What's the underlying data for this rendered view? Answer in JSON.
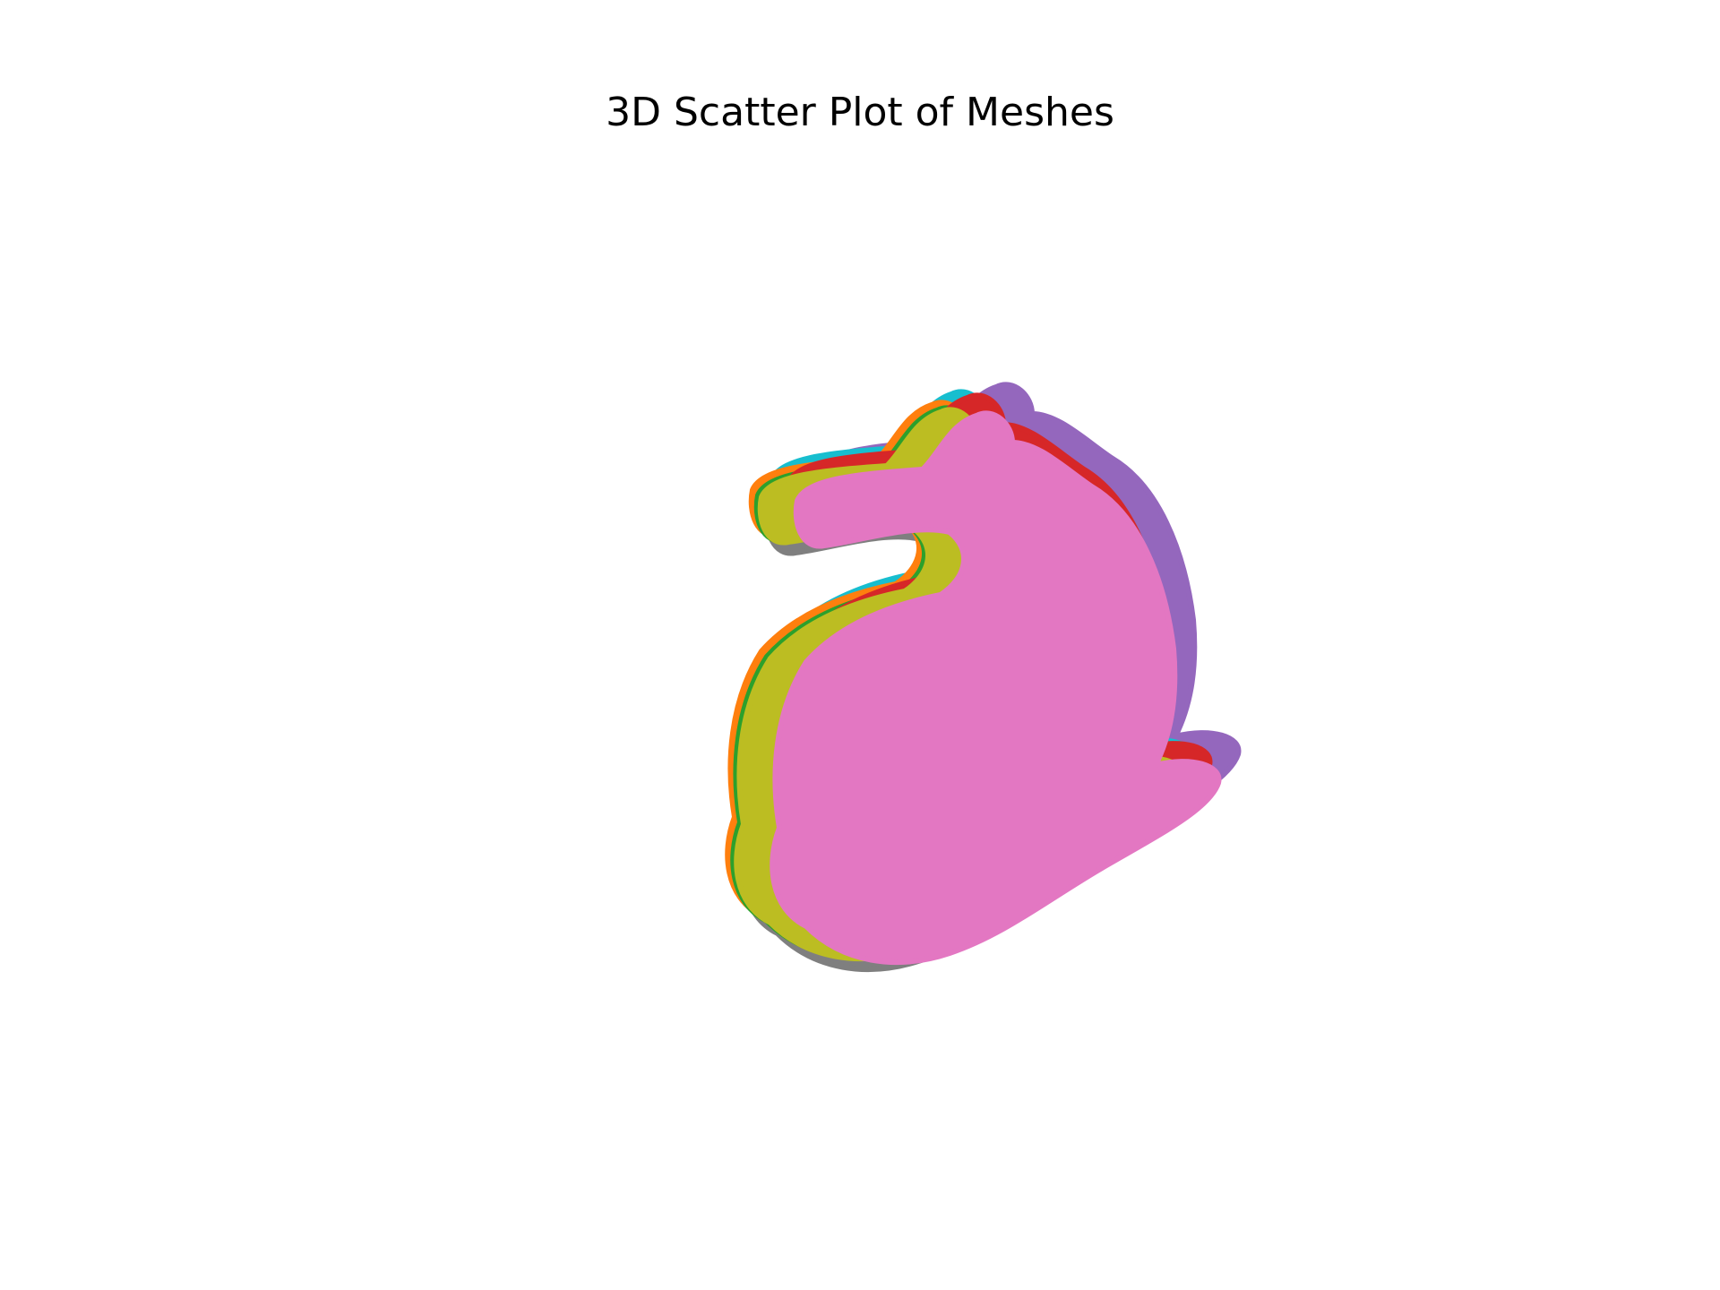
{
  "chart_data": {
    "type": "scatter",
    "title": "3D Scatter Plot of Meshes",
    "xlabel": "",
    "ylabel": "",
    "zlabel": "",
    "axes_visible": false,
    "grid": false,
    "legend": "none",
    "series": [
      {
        "color": "#7f7f7f",
        "offset": [
          8,
          12
        ]
      },
      {
        "color": "#8c564b",
        "offset": [
          28,
          -14
        ]
      },
      {
        "color": "#9467bd",
        "offset": [
          62,
          -28
        ]
      },
      {
        "color": "#17becf",
        "offset": [
          12,
          -20
        ]
      },
      {
        "color": "#ff7f0e",
        "offset": [
          -10,
          -8
        ]
      },
      {
        "color": "#2ca02c",
        "offset": [
          -4,
          -2
        ]
      },
      {
        "color": "#d62728",
        "offset": [
          30,
          -16
        ]
      },
      {
        "color": "#bcbd22",
        "offset": [
          0,
          0
        ]
      },
      {
        "color": "#e377c2",
        "offset": [
          40,
          4
        ]
      }
    ]
  }
}
